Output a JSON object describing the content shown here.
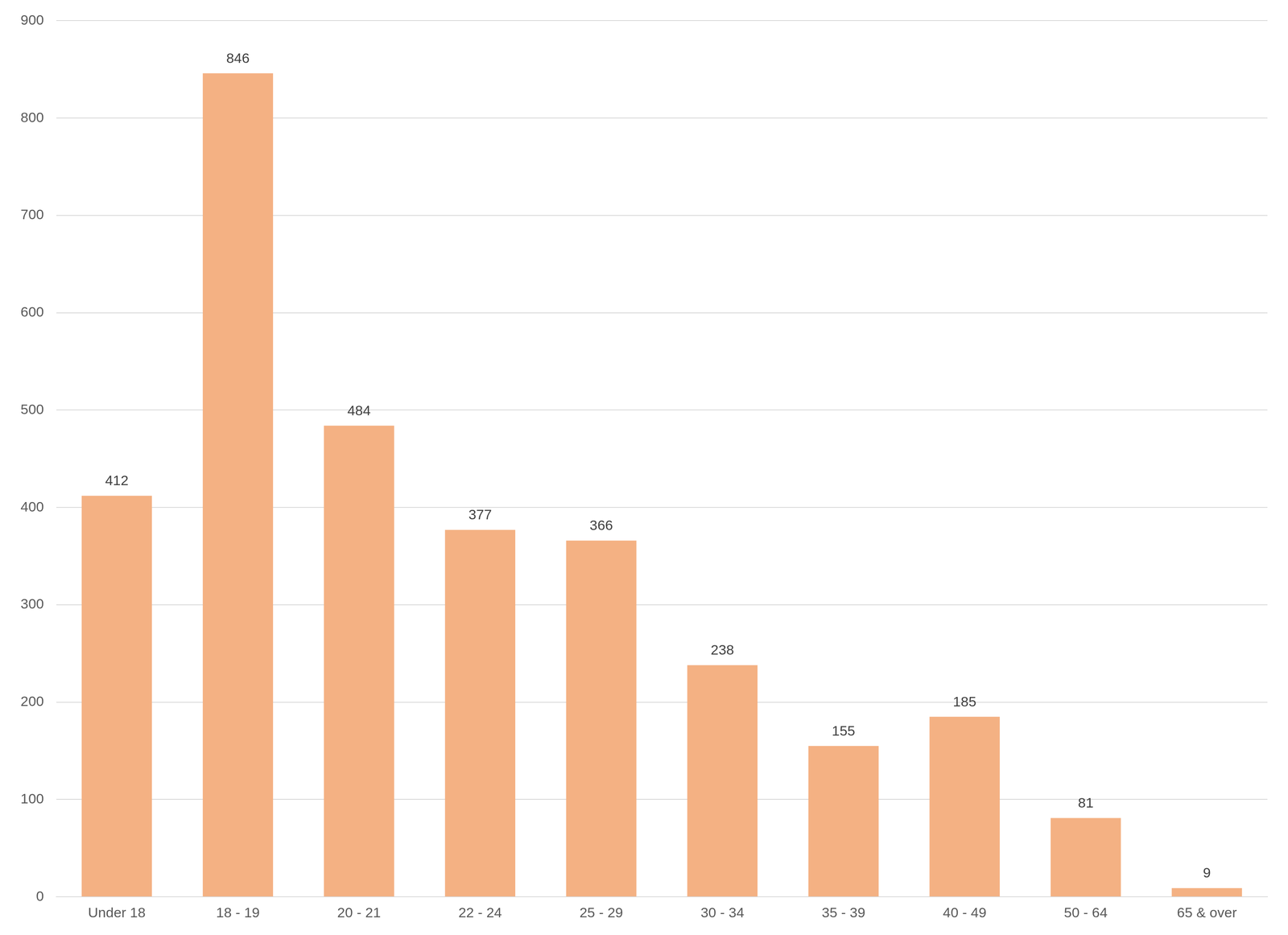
{
  "chart_data": {
    "type": "bar",
    "categories": [
      "Under 18",
      "18 - 19",
      "20 - 21",
      "22 - 24",
      "25 - 29",
      "30 - 34",
      "35 - 39",
      "40 - 49",
      "50 - 64",
      "65 & over"
    ],
    "values": [
      412,
      846,
      484,
      377,
      366,
      238,
      155,
      185,
      81,
      9
    ],
    "color": "#f4b183",
    "ylim": [
      0,
      900
    ],
    "yticks": [
      0,
      100,
      200,
      300,
      400,
      500,
      600,
      700,
      800,
      900
    ],
    "grid": true,
    "data_labels": true
  }
}
